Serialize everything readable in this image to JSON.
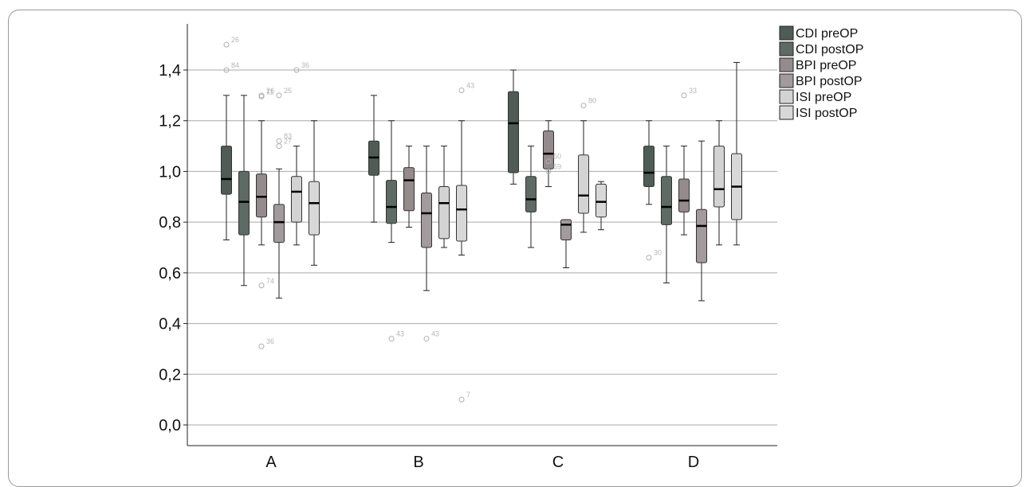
{
  "chart_data": {
    "type": "boxplot",
    "title": "",
    "xlabel": "",
    "ylabel": "",
    "ylim": [
      -0.08,
      1.58
    ],
    "yticks": [
      0.0,
      0.2,
      0.4,
      0.6,
      0.8,
      1.0,
      1.2,
      1.4
    ],
    "ytick_labels": [
      "0,0",
      "0,2",
      "0,4",
      "0,6",
      "0,8",
      "1,0",
      "1,2",
      "1,4"
    ],
    "grid": "horizontal",
    "legend_position": "top-right",
    "categories": [
      "A",
      "B",
      "C",
      "D"
    ],
    "series": [
      {
        "name": "CDI preOP",
        "color": "#4e5c55",
        "boxes": [
          {
            "min": 0.73,
            "q1": 0.91,
            "median": 0.97,
            "q3": 1.1,
            "max": 1.3,
            "outliers": [
              {
                "value": 1.5,
                "label": "26"
              },
              {
                "value": 1.4,
                "label": "84"
              }
            ]
          },
          {
            "min": 0.8,
            "q1": 0.985,
            "median": 1.055,
            "q3": 1.12,
            "max": 1.3,
            "outliers": []
          },
          {
            "min": 0.95,
            "q1": 0.995,
            "median": 1.19,
            "q3": 1.315,
            "max": 1.4,
            "outliers": []
          },
          {
            "min": 0.87,
            "q1": 0.94,
            "median": 0.995,
            "q3": 1.1,
            "max": 1.2,
            "outliers": [
              {
                "value": 0.66,
                "label": "30"
              }
            ]
          }
        ]
      },
      {
        "name": "CDI postOP",
        "color": "#5e6b64",
        "boxes": [
          {
            "min": 0.55,
            "q1": 0.75,
            "median": 0.88,
            "q3": 1.0,
            "max": 1.3,
            "outliers": []
          },
          {
            "min": 0.72,
            "q1": 0.795,
            "median": 0.86,
            "q3": 0.965,
            "max": 1.2,
            "outliers": [
              {
                "value": 0.34,
                "label": "43"
              }
            ]
          },
          {
            "min": 0.7,
            "q1": 0.84,
            "median": 0.89,
            "q3": 0.98,
            "max": 1.1,
            "outliers": []
          },
          {
            "min": 0.56,
            "q1": 0.79,
            "median": 0.86,
            "q3": 0.98,
            "max": 1.1,
            "outliers": []
          }
        ]
      },
      {
        "name": "BPI preOP",
        "color": "#958b8d",
        "boxes": [
          {
            "min": 0.71,
            "q1": 0.82,
            "median": 0.9,
            "q3": 0.99,
            "max": 1.2,
            "outliers": [
              {
                "value": 1.3,
                "label": "26"
              },
              {
                "value": 1.295,
                "label": "11"
              },
              {
                "value": 0.55,
                "label": "74"
              },
              {
                "value": 0.31,
                "label": "36"
              }
            ]
          },
          {
            "min": 0.78,
            "q1": 0.845,
            "median": 0.965,
            "q3": 1.015,
            "max": 1.1,
            "outliers": []
          },
          {
            "min": 0.94,
            "q1": 1.01,
            "median": 1.07,
            "q3": 1.16,
            "max": 1.2,
            "outliers": [
              {
                "value": 1.04,
                "label": "50"
              },
              {
                "value": 1.0,
                "label": "59"
              }
            ]
          },
          {
            "min": 0.75,
            "q1": 0.84,
            "median": 0.885,
            "q3": 0.97,
            "max": 1.1,
            "outliers": [
              {
                "value": 1.3,
                "label": "33"
              }
            ]
          }
        ]
      },
      {
        "name": "BPI postOP",
        "color": "#a29a9c",
        "boxes": [
          {
            "min": 0.5,
            "q1": 0.72,
            "median": 0.8,
            "q3": 0.87,
            "max": 1.01,
            "outliers": [
              {
                "value": 1.3,
                "label": "25"
              },
              {
                "value": 1.12,
                "label": "83"
              },
              {
                "value": 1.1,
                "label": "27"
              }
            ]
          },
          {
            "min": 0.53,
            "q1": 0.7,
            "median": 0.835,
            "q3": 0.915,
            "max": 1.1,
            "outliers": [
              {
                "value": 0.34,
                "label": "43"
              }
            ]
          },
          {
            "min": 0.62,
            "q1": 0.73,
            "median": 0.79,
            "q3": 0.81,
            "max": 0.81,
            "outliers": []
          },
          {
            "min": 0.49,
            "q1": 0.64,
            "median": 0.785,
            "q3": 0.85,
            "max": 1.12,
            "outliers": []
          }
        ]
      },
      {
        "name": "ISI preOP",
        "color": "#d3d3d3",
        "boxes": [
          {
            "min": 0.71,
            "q1": 0.8,
            "median": 0.92,
            "q3": 0.98,
            "max": 1.1,
            "outliers": [
              {
                "value": 1.4,
                "label": "36"
              }
            ]
          },
          {
            "min": 0.7,
            "q1": 0.735,
            "median": 0.875,
            "q3": 0.94,
            "max": 1.1,
            "outliers": []
          },
          {
            "min": 0.76,
            "q1": 0.835,
            "median": 0.905,
            "q3": 1.065,
            "max": 1.2,
            "outliers": [
              {
                "value": 1.26,
                "label": "80"
              }
            ]
          },
          {
            "min": 0.71,
            "q1": 0.86,
            "median": 0.93,
            "q3": 1.1,
            "max": 1.2,
            "outliers": []
          }
        ]
      },
      {
        "name": "ISI postOP",
        "color": "#d8d8d8",
        "boxes": [
          {
            "min": 0.63,
            "q1": 0.75,
            "median": 0.875,
            "q3": 0.96,
            "max": 1.2,
            "outliers": []
          },
          {
            "min": 0.67,
            "q1": 0.725,
            "median": 0.85,
            "q3": 0.945,
            "max": 1.2,
            "outliers": [
              {
                "value": 1.32,
                "label": "43"
              },
              {
                "value": 0.1,
                "label": "7"
              }
            ]
          },
          {
            "min": 0.77,
            "q1": 0.82,
            "median": 0.88,
            "q3": 0.95,
            "max": 0.96,
            "outliers": []
          },
          {
            "min": 0.71,
            "q1": 0.81,
            "median": 0.94,
            "q3": 1.07,
            "max": 1.43,
            "outliers": []
          }
        ]
      }
    ]
  }
}
